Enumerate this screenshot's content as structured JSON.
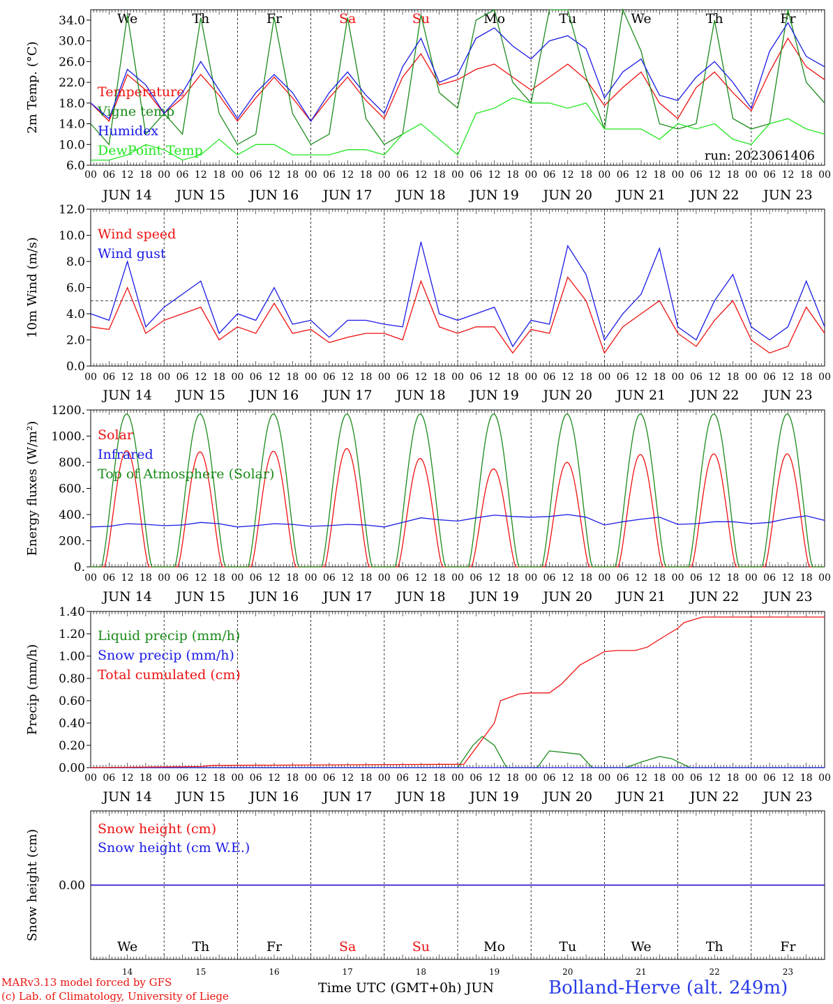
{
  "colors": {
    "red": "#ee1111",
    "green": "#1a8a1a",
    "lightgreen": "#22e622",
    "blue": "#1a1ae6",
    "purple": "#7a2a9a",
    "black": "#000000",
    "station": "#2a3ce8"
  },
  "day_names": [
    "We",
    "Th",
    "Fr",
    "Sa",
    "Su",
    "Mo",
    "Tu",
    "We",
    "Th",
    "Fr"
  ],
  "weekend_days": [
    "Sa",
    "Su"
  ],
  "date_labels": [
    "JUN 14",
    "JUN 15",
    "JUN 16",
    "JUN 17",
    "JUN 18",
    "JUN 19",
    "JUN 20",
    "JUN 21",
    "JUN 22",
    "JUN 23"
  ],
  "day_numbers": [
    "14",
    "15",
    "16",
    "17",
    "18",
    "19",
    "20",
    "21",
    "22",
    "23"
  ],
  "hour_labels": [
    "00",
    "06",
    "12",
    "18"
  ],
  "footer": {
    "credit_line1": "MARv3.13 model forced by GFS",
    "credit_line2": "(c) Lab. of Climatology, University of Liege",
    "x_title": "Time UTC (GMT+0h) JUN",
    "station": "Bolland-Herve (alt. 249m)"
  },
  "chart_data": [
    {
      "type": "line",
      "ylabel": "2m Temp. (°C)",
      "ylim": [
        6,
        36
      ],
      "yticks": [
        "6.0",
        "10.0",
        "14.0",
        "18.0",
        "22.0",
        "26.0",
        "30.0",
        "34.0"
      ],
      "annotation": "run: 2023061406",
      "x_unit": "hours since JUN 14 00 UTC",
      "series": [
        {
          "name": "Temperature",
          "color": "red",
          "x": [
            0,
            6,
            12,
            18,
            24,
            30,
            36,
            42,
            48,
            54,
            60,
            66,
            72,
            78,
            84,
            90,
            96,
            102,
            108,
            114,
            120,
            126,
            132,
            138,
            144,
            150,
            156,
            162,
            168,
            174,
            180,
            186,
            192,
            198,
            204,
            210,
            216,
            222,
            228,
            234,
            240
          ],
          "values": [
            18,
            14.5,
            23.5,
            20.5,
            16,
            19,
            23.5,
            19.5,
            14.5,
            19,
            23,
            19,
            14.5,
            19,
            23,
            18.5,
            15,
            23,
            27.5,
            21.5,
            22.5,
            24.5,
            25.5,
            23,
            20.5,
            23,
            25.5,
            22.5,
            17.5,
            21,
            24,
            18,
            15,
            21,
            24,
            20,
            16.5,
            24,
            30.5,
            25,
            22.5
          ]
        },
        {
          "name": "Vigne temp",
          "color": "green",
          "x": [
            0,
            6,
            12,
            18,
            24,
            30,
            36,
            42,
            48,
            54,
            60,
            66,
            72,
            78,
            84,
            90,
            96,
            102,
            108,
            114,
            120,
            126,
            132,
            138,
            144,
            150,
            156,
            162,
            168,
            174,
            180,
            186,
            192,
            198,
            204,
            210,
            216,
            222,
            228,
            234,
            240
          ],
          "values": [
            14,
            10,
            35,
            12,
            16,
            12,
            34.5,
            16,
            10,
            12,
            34.5,
            16,
            10,
            12,
            34.5,
            15,
            10,
            12,
            35,
            20,
            17,
            34,
            36,
            22,
            18,
            36,
            36,
            23,
            13,
            36,
            28,
            14,
            13,
            14,
            34,
            15,
            13,
            14,
            36,
            22,
            18
          ]
        },
        {
          "name": "Humidex",
          "color": "blue",
          "x": [
            0,
            6,
            12,
            18,
            24,
            30,
            36,
            42,
            48,
            54,
            60,
            66,
            72,
            78,
            84,
            90,
            96,
            102,
            108,
            114,
            120,
            126,
            132,
            138,
            144,
            150,
            156,
            162,
            168,
            174,
            180,
            186,
            192,
            198,
            204,
            210,
            216,
            222,
            228,
            234,
            240
          ],
          "values": [
            18,
            15,
            24.5,
            21.5,
            16,
            20,
            26,
            20.5,
            15,
            20,
            23.5,
            20,
            14.5,
            20,
            24,
            19.5,
            16,
            25,
            30.5,
            22,
            23.5,
            30.5,
            32.5,
            29,
            26.5,
            30,
            31,
            28.5,
            19,
            24,
            26.5,
            19.5,
            18.5,
            23,
            26,
            22,
            17,
            28,
            33.5,
            27,
            25
          ]
        },
        {
          "name": "DewPoint Temp",
          "color": "lightgreen",
          "x": [
            0,
            6,
            12,
            18,
            24,
            30,
            36,
            42,
            48,
            54,
            60,
            66,
            72,
            78,
            84,
            90,
            96,
            102,
            108,
            114,
            120,
            126,
            132,
            138,
            144,
            150,
            156,
            162,
            168,
            174,
            180,
            186,
            192,
            198,
            204,
            210,
            216,
            222,
            228,
            234,
            240
          ],
          "values": [
            7,
            7,
            8,
            10,
            9,
            7,
            8,
            11,
            8,
            10,
            10,
            8,
            8,
            8,
            9,
            9,
            8,
            12,
            14,
            11,
            8,
            16,
            17,
            19,
            18,
            18,
            17,
            18,
            13,
            13,
            13,
            11,
            14,
            13,
            14,
            11,
            10,
            14,
            15,
            13,
            12
          ]
        }
      ]
    },
    {
      "type": "line",
      "ylabel": "10m Wind (m/s)",
      "ylim": [
        0,
        12
      ],
      "yticks": [
        "0.0",
        "2.0",
        "4.0",
        "6.0",
        "8.0",
        "10.0",
        "12.0"
      ],
      "reference_line": 5,
      "x_unit": "hours since JUN 14 00 UTC",
      "series": [
        {
          "name": "Wind speed",
          "color": "red",
          "x": [
            0,
            6,
            12,
            18,
            24,
            30,
            36,
            42,
            48,
            54,
            60,
            66,
            72,
            78,
            84,
            90,
            96,
            102,
            108,
            114,
            120,
            126,
            132,
            138,
            144,
            150,
            156,
            162,
            168,
            174,
            180,
            186,
            192,
            198,
            204,
            210,
            216,
            222,
            228,
            234,
            240
          ],
          "values": [
            3,
            2.8,
            6,
            2.5,
            3.5,
            4,
            4.5,
            2,
            3,
            2.5,
            4.8,
            2.5,
            2.8,
            1.8,
            2.2,
            2.5,
            2.5,
            2,
            6.5,
            3,
            2.5,
            3,
            3,
            1,
            2.8,
            2.5,
            6.8,
            5,
            1,
            3,
            4,
            5,
            2.5,
            1.5,
            3.5,
            5,
            2,
            1,
            1.5,
            4.5,
            2.5
          ]
        },
        {
          "name": "Wind gust",
          "color": "blue",
          "x": [
            0,
            6,
            12,
            18,
            24,
            30,
            36,
            42,
            48,
            54,
            60,
            66,
            72,
            78,
            84,
            90,
            96,
            102,
            108,
            114,
            120,
            126,
            132,
            138,
            144,
            150,
            156,
            162,
            168,
            174,
            180,
            186,
            192,
            198,
            204,
            210,
            216,
            222,
            228,
            234,
            240
          ],
          "values": [
            4,
            3.5,
            8,
            3,
            4.5,
            5.5,
            6.5,
            2.5,
            4,
            3.5,
            6,
            3.2,
            3.5,
            2.2,
            3.5,
            3.5,
            3.2,
            3,
            9.5,
            4,
            3.5,
            4,
            4.5,
            1.5,
            3.5,
            3.2,
            9.2,
            7,
            2,
            4,
            5.5,
            9,
            3,
            2,
            5,
            7,
            3,
            2,
            3,
            6.5,
            3
          ]
        }
      ]
    },
    {
      "type": "line",
      "ylabel": "Energy fluxes (W/m²)",
      "ylim": [
        0,
        1200
      ],
      "yticks": [
        "0.",
        "200.",
        "400.",
        "600.",
        "800.",
        "1000.",
        "1200."
      ],
      "x_unit": "hours since JUN 14 00 UTC",
      "series": [
        {
          "name": "Solar",
          "color": "red",
          "daily_peaks": [
            890,
            880,
            885,
            905,
            830,
            750,
            800,
            860,
            865,
            865
          ]
        },
        {
          "name": "Infrared",
          "color": "blue",
          "x": [
            0,
            6,
            12,
            18,
            24,
            30,
            36,
            42,
            48,
            54,
            60,
            66,
            72,
            78,
            84,
            90,
            96,
            102,
            108,
            114,
            120,
            126,
            132,
            138,
            144,
            150,
            156,
            162,
            168,
            174,
            180,
            186,
            192,
            198,
            204,
            210,
            216,
            222,
            228,
            234,
            240
          ],
          "values": [
            305,
            310,
            330,
            325,
            315,
            320,
            340,
            330,
            305,
            315,
            330,
            325,
            310,
            315,
            325,
            320,
            305,
            340,
            375,
            360,
            350,
            375,
            395,
            385,
            380,
            385,
            400,
            380,
            320,
            345,
            365,
            380,
            325,
            330,
            345,
            345,
            330,
            340,
            370,
            390,
            355
          ]
        },
        {
          "name": "Top of Atmosphere (Solar)",
          "color": "green",
          "daily_peak": 1170
        }
      ]
    },
    {
      "type": "line",
      "ylabel": "Precip (mm/h)",
      "ylim": [
        0,
        1.4
      ],
      "yticks": [
        "0.00",
        "0.20",
        "0.40",
        "0.60",
        "0.80",
        "1.00",
        "1.20",
        "1.40"
      ],
      "x_unit": "hours since JUN 14 00 UTC",
      "series": [
        {
          "name": "Liquid precip (mm/h)",
          "color": "green",
          "x": [
            0,
            80,
            110,
            120,
            125,
            128,
            132,
            136,
            140,
            146,
            150,
            160,
            164,
            170,
            175,
            180,
            186,
            190,
            196,
            200,
            210,
            212,
            218,
            240
          ],
          "values": [
            0,
            0,
            0,
            0,
            0.2,
            0.28,
            0.2,
            0,
            0,
            0,
            0.15,
            0.12,
            0,
            0,
            0,
            0.05,
            0.1,
            0.08,
            0,
            0,
            0,
            0,
            0,
            0
          ]
        },
        {
          "name": "Snow precip (mm/h)",
          "color": "blue",
          "x": [
            0,
            240
          ],
          "values": [
            0,
            0
          ]
        },
        {
          "name": "Total cumulated (cm)",
          "color": "red",
          "x": [
            0,
            36,
            40,
            122,
            132,
            134,
            140,
            144,
            150,
            154,
            160,
            168,
            172,
            174,
            178,
            182,
            186,
            192,
            194,
            200,
            216,
            240
          ],
          "values": [
            0,
            0.01,
            0.02,
            0.03,
            0.4,
            0.6,
            0.66,
            0.67,
            0.67,
            0.75,
            0.92,
            1.04,
            1.05,
            1.05,
            1.05,
            1.08,
            1.15,
            1.25,
            1.3,
            1.35,
            1.35,
            1.35
          ]
        }
      ]
    },
    {
      "type": "line",
      "ylabel": "Snow height (cm)",
      "ylim": [
        -1,
        1
      ],
      "yticks": [
        "0.00"
      ],
      "x_unit": "hours since JUN 14 00 UTC",
      "series": [
        {
          "name": "Snow height (cm)",
          "color": "red",
          "x": [
            0,
            240
          ],
          "values": [
            0,
            0
          ]
        },
        {
          "name": "Snow height (cm W.E.)",
          "color": "blue",
          "x": [
            0,
            240
          ],
          "values": [
            0,
            0
          ]
        }
      ]
    }
  ]
}
